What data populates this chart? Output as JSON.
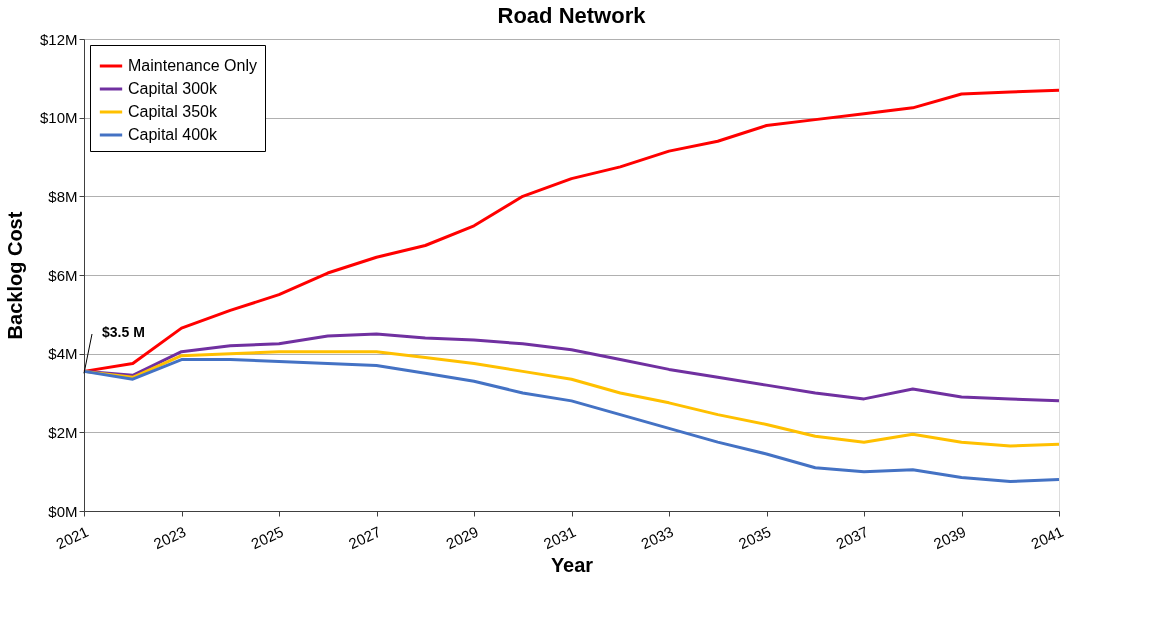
{
  "chart_data": {
    "type": "line",
    "title": "Road Network",
    "xlabel": "Year",
    "ylabel": "Backlog Cost",
    "x": [
      2021,
      2022,
      2023,
      2024,
      2025,
      2026,
      2027,
      2028,
      2029,
      2030,
      2031,
      2032,
      2033,
      2034,
      2035,
      2036,
      2037,
      2038,
      2039,
      2040,
      2041
    ],
    "series": [
      {
        "name": "Maintenance Only",
        "color": "#ff0000",
        "values": [
          3.55,
          3.75,
          4.65,
          5.1,
          5.5,
          6.05,
          6.45,
          6.75,
          7.25,
          8.0,
          8.45,
          8.75,
          9.15,
          9.4,
          9.8,
          9.95,
          10.1,
          10.25,
          10.6,
          10.65,
          10.7
        ]
      },
      {
        "name": "Capital 300k",
        "color": "#7030a0",
        "values": [
          3.55,
          3.45,
          4.05,
          4.2,
          4.25,
          4.45,
          4.5,
          4.4,
          4.35,
          4.25,
          4.1,
          3.85,
          3.6,
          3.4,
          3.2,
          3.0,
          2.85,
          3.1,
          2.9,
          2.85,
          2.8
        ]
      },
      {
        "name": "Capital 350k",
        "color": "#ffc000",
        "values": [
          3.55,
          3.4,
          3.95,
          4.0,
          4.05,
          4.05,
          4.05,
          3.9,
          3.75,
          3.55,
          3.35,
          3.0,
          2.75,
          2.45,
          2.2,
          1.9,
          1.75,
          1.95,
          1.75,
          1.65,
          1.7
        ]
      },
      {
        "name": "Capital 400k",
        "color": "#4472c4",
        "values": [
          3.55,
          3.35,
          3.85,
          3.85,
          3.8,
          3.75,
          3.7,
          3.5,
          3.3,
          3.0,
          2.8,
          2.45,
          2.1,
          1.75,
          1.45,
          1.1,
          1.0,
          1.05,
          0.85,
          0.75,
          0.8
        ]
      }
    ],
    "xlim": [
      2021,
      2041
    ],
    "xticks": [
      2021,
      2023,
      2025,
      2027,
      2029,
      2031,
      2033,
      2035,
      2037,
      2039,
      2041
    ],
    "ylim": [
      0,
      12
    ],
    "yticks": [
      {
        "value": 0,
        "label": "$0M"
      },
      {
        "value": 2,
        "label": "$2M"
      },
      {
        "value": 4,
        "label": "$4M"
      },
      {
        "value": 6,
        "label": "$6M"
      },
      {
        "value": 8,
        "label": "$8M"
      },
      {
        "value": 10,
        "label": "$10M"
      },
      {
        "value": 12,
        "label": "$12M"
      }
    ],
    "annotations": [
      {
        "text": "$3.5 M",
        "x": 2021,
        "y": 3.5
      }
    ],
    "grid": "y",
    "legend": "top left",
    "marker": "none",
    "line_style": "solid"
  }
}
